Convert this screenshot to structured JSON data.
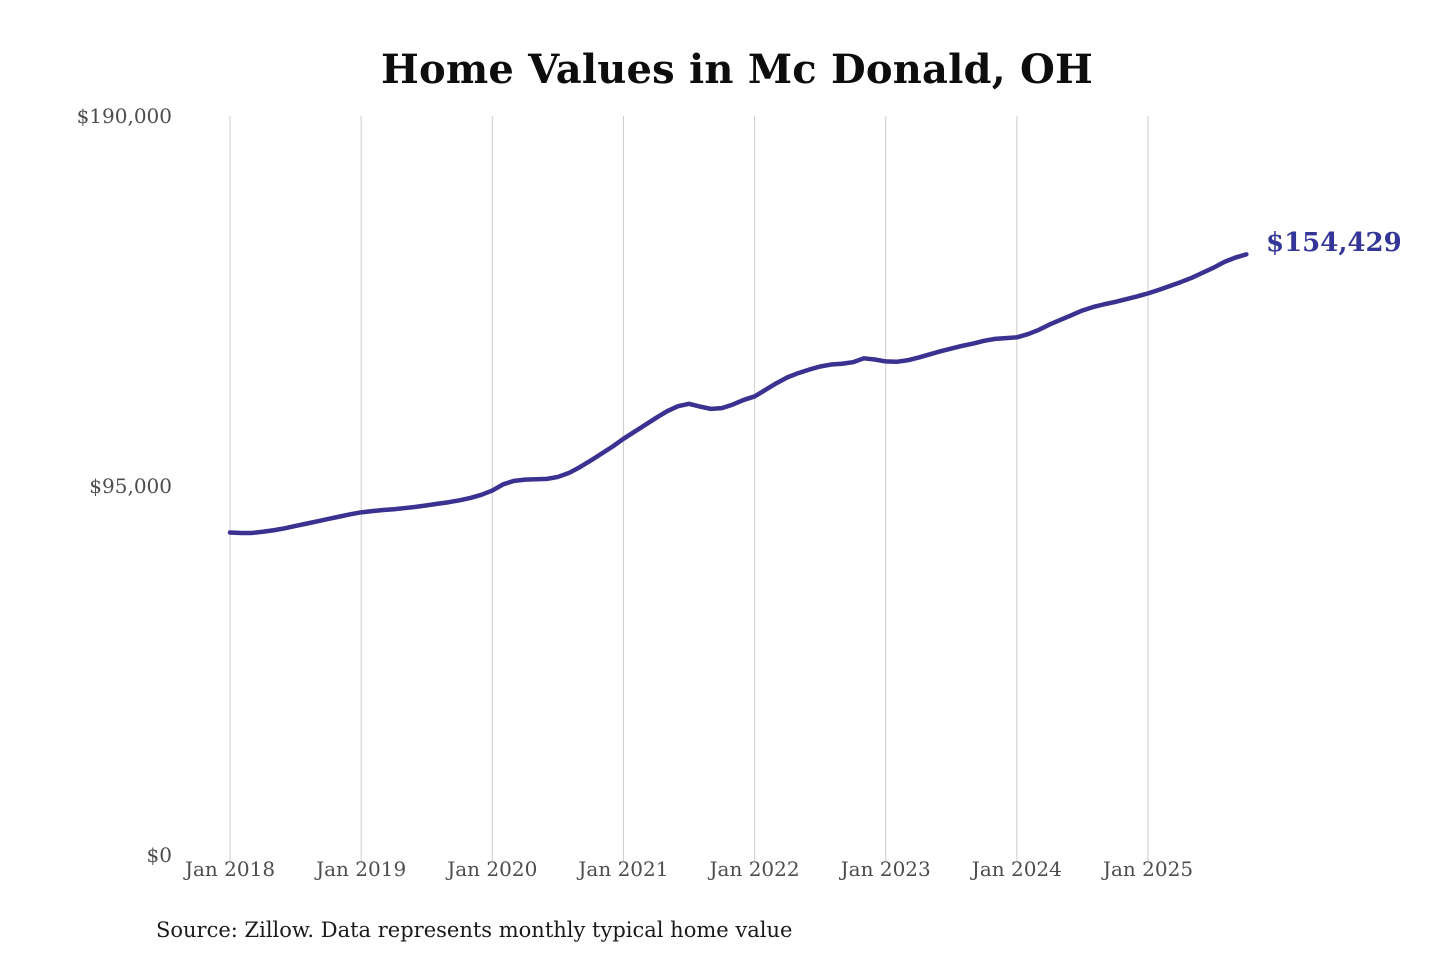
{
  "chart_data": {
    "type": "line",
    "title": "Home Values in Mc Donald, OH",
    "source": "Source: Zillow. Data represents monthly typical home value",
    "end_label": "$154,429",
    "latest_value": 154429,
    "ylabel": "",
    "xlabel": "",
    "ylim": [
      0,
      190000
    ],
    "grid": "vertical-only",
    "legend": "none",
    "y_ticks": [
      "$190,000",
      "$95,000",
      "$0"
    ],
    "y_tick_values": [
      190000,
      95000,
      0
    ],
    "x_ticks": [
      "Jan 2018",
      "Jan 2019",
      "Jan 2020",
      "Jan 2021",
      "Jan 2022",
      "Jan 2023",
      "Jan 2024",
      "Jan 2025"
    ],
    "x": [
      "Jan 2018",
      "Feb 2018",
      "Mar 2018",
      "Apr 2018",
      "May 2018",
      "Jun 2018",
      "Jul 2018",
      "Aug 2018",
      "Sep 2018",
      "Oct 2018",
      "Nov 2018",
      "Dec 2018",
      "Jan 2019",
      "Feb 2019",
      "Mar 2019",
      "Apr 2019",
      "May 2019",
      "Jun 2019",
      "Jul 2019",
      "Aug 2019",
      "Sep 2019",
      "Oct 2019",
      "Nov 2019",
      "Dec 2019",
      "Jan 2020",
      "Feb 2020",
      "Mar 2020",
      "Apr 2020",
      "May 2020",
      "Jun 2020",
      "Jul 2020",
      "Aug 2020",
      "Sep 2020",
      "Oct 2020",
      "Nov 2020",
      "Dec 2020",
      "Jan 2021",
      "Feb 2021",
      "Mar 2021",
      "Apr 2021",
      "May 2021",
      "Jun 2021",
      "Jul 2021",
      "Aug 2021",
      "Sep 2021",
      "Oct 2021",
      "Nov 2021",
      "Dec 2021",
      "Jan 2022",
      "Feb 2022",
      "Mar 2022",
      "Apr 2022",
      "May 2022",
      "Jun 2022",
      "Jul 2022",
      "Aug 2022",
      "Sep 2022",
      "Oct 2022",
      "Nov 2022",
      "Dec 2022",
      "Jan 2023",
      "Feb 2023",
      "Mar 2023",
      "Apr 2023",
      "May 2023",
      "Jun 2023",
      "Jul 2023",
      "Aug 2023",
      "Sep 2023",
      "Oct 2023",
      "Nov 2023",
      "Dec 2023",
      "Jan 2024",
      "Feb 2024",
      "Mar 2024",
      "Apr 2024",
      "May 2024",
      "Jun 2024",
      "Jul 2024",
      "Aug 2024",
      "Sep 2024",
      "Oct 2024",
      "Nov 2024",
      "Dec 2024",
      "Jan 2025",
      "Feb 2025",
      "Mar 2025",
      "Apr 2025",
      "May 2025",
      "Jun 2025",
      "Jul 2025",
      "Aug 2025",
      "Sep 2025",
      "Oct 2025"
    ],
    "series": [
      {
        "name": "Typical home value",
        "values": [
          82900,
          82800,
          82800,
          83100,
          83500,
          84000,
          84600,
          85200,
          85800,
          86400,
          87000,
          87600,
          88100,
          88400,
          88700,
          88900,
          89200,
          89500,
          89900,
          90300,
          90700,
          91200,
          91800,
          92600,
          93700,
          95300,
          96200,
          96500,
          96600,
          96700,
          97200,
          98200,
          99700,
          101400,
          103200,
          105000,
          107000,
          108800,
          110600,
          112400,
          114100,
          115400,
          116000,
          115300,
          114700,
          114900,
          115800,
          117000,
          117900,
          119600,
          121300,
          122800,
          123900,
          124800,
          125600,
          126100,
          126300,
          126700,
          127700,
          127400,
          126900,
          126800,
          127200,
          127900,
          128700,
          129500,
          130200,
          130900,
          131500,
          132200,
          132700,
          132900,
          133100,
          133900,
          135000,
          136400,
          137600,
          138800,
          140000,
          140900,
          141600,
          142200,
          142900,
          143600,
          144400,
          145300,
          146300,
          147300,
          148400,
          149700,
          151000,
          152500,
          153600,
          154429
        ]
      }
    ],
    "colors": {
      "line": "#3a3191",
      "accent": "#333697",
      "gridline": "#cccccc",
      "tick_text": "#4d4d4d",
      "source_text": "#1a1a1a",
      "title_text": "#0d0d0d",
      "background": "#ffffff"
    }
  }
}
